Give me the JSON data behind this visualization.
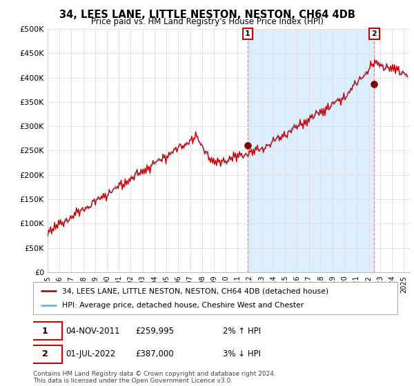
{
  "title": "34, LEES LANE, LITTLE NESTON, NESTON, CH64 4DB",
  "subtitle": "Price paid vs. HM Land Registry's House Price Index (HPI)",
  "ylabel_ticks": [
    "£0",
    "£50K",
    "£100K",
    "£150K",
    "£200K",
    "£250K",
    "£300K",
    "£350K",
    "£400K",
    "£450K",
    "£500K"
  ],
  "ytick_values": [
    0,
    50000,
    100000,
    150000,
    200000,
    250000,
    300000,
    350000,
    400000,
    450000,
    500000
  ],
  "ylim": [
    0,
    500000
  ],
  "xlim_start": 1995.0,
  "xlim_end": 2025.5,
  "hpi_color": "#7ab3d8",
  "price_color": "#cc0000",
  "sale1_x": 2011.85,
  "sale1_y": 259995,
  "sale2_x": 2022.5,
  "sale2_y": 387000,
  "vline_color": "#dd8888",
  "shade_color": "#ddeeff",
  "legend_line1": "34, LEES LANE, LITTLE NESTON, NESTON, CH64 4DB (detached house)",
  "legend_line2": "HPI: Average price, detached house, Cheshire West and Chester",
  "table_row1": [
    "1",
    "04-NOV-2011",
    "£259,995",
    "2% ↑ HPI"
  ],
  "table_row2": [
    "2",
    "01-JUL-2022",
    "£387,000",
    "3% ↓ HPI"
  ],
  "footer": "Contains HM Land Registry data © Crown copyright and database right 2024.\nThis data is licensed under the Open Government Licence v3.0.",
  "background_color": "#ffffff",
  "grid_color": "#dddddd"
}
